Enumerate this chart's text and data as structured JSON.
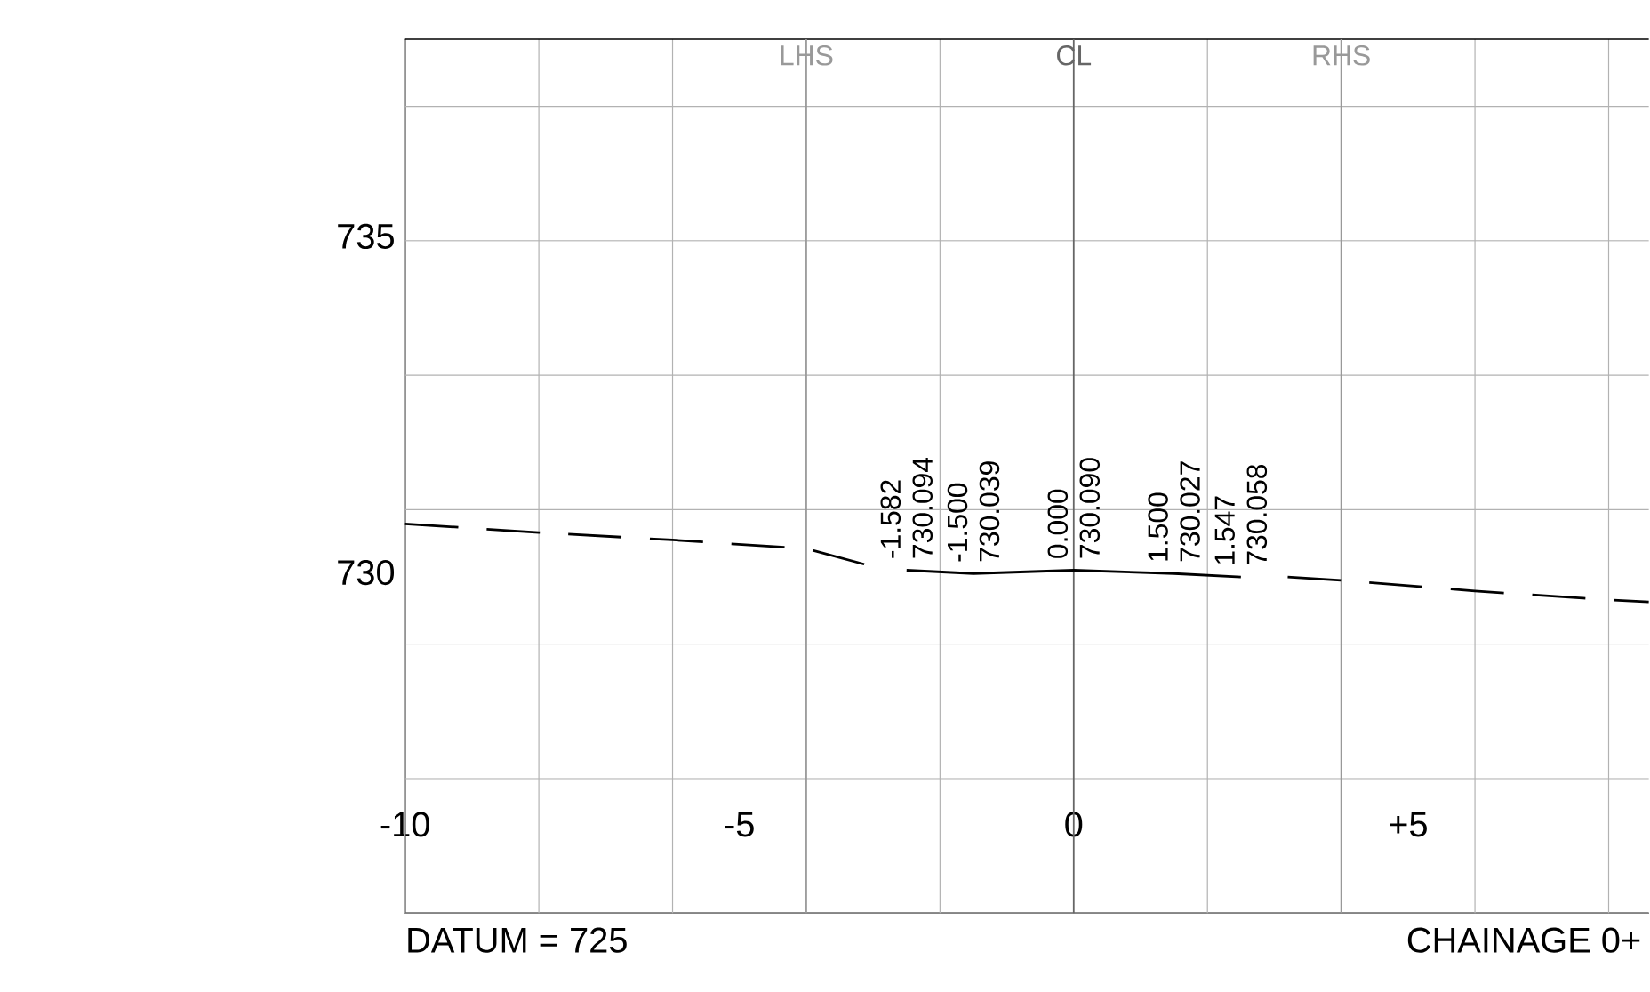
{
  "chart_data": {
    "type": "line",
    "xlim": [
      -10,
      8.6
    ],
    "ylim": [
      725,
      738
    ],
    "xticks": [
      -10,
      {
        "value": -8,
        "label": null
      },
      {
        "value": -6,
        "label": null
      },
      -5,
      {
        "value": -2,
        "label": null
      },
      0,
      {
        "value": 2,
        "label": null
      },
      {
        "value": 5,
        "label": "+5"
      },
      {
        "value": 6,
        "label": null
      },
      {
        "value": 8,
        "label": null
      }
    ],
    "yticks": [
      {
        "value": 725,
        "label": null
      },
      {
        "value": 727,
        "label": null
      },
      {
        "value": 729,
        "label": null
      },
      730,
      {
        "value": 731,
        "label": null
      },
      {
        "value": 733,
        "label": null
      },
      735,
      {
        "value": 737,
        "label": null
      }
    ],
    "grid": true,
    "marker": "none",
    "series": [
      {
        "color": "#000000",
        "line_style": "solid",
        "x": [
          -2.5,
          -1.5,
          0,
          1.5,
          2.5
        ],
        "values": [
          730.1,
          730.05,
          730.1,
          730.05,
          730.0
        ]
      },
      {
        "color": "#000000",
        "line_style": "dashed",
        "x": [
          -10,
          -8,
          -6,
          -4,
          -3.1,
          0,
          3.2,
          4,
          6,
          8,
          8.6
        ],
        "values": [
          730.79,
          730.66,
          730.55,
          730.42,
          730.18,
          null,
          730.0,
          729.95,
          729.79,
          729.66,
          729.63
        ]
      }
    ],
    "ref_lines": [
      {
        "axis": "x",
        "value": -4,
        "label": "LHS",
        "color": "#999999"
      },
      {
        "axis": "x",
        "value": 0,
        "label": "CL",
        "color": "#666666"
      },
      {
        "axis": "x",
        "value": 4,
        "label": "RHS",
        "color": "#999999"
      }
    ],
    "annotations": [
      "-1.582",
      "730.094",
      "-1.500",
      "730.039",
      "0.000",
      "730.090",
      "1.500",
      "730.027",
      "1.547",
      "730.058",
      "DATUM = 725",
      "CHAINAGE 0+"
    ]
  }
}
